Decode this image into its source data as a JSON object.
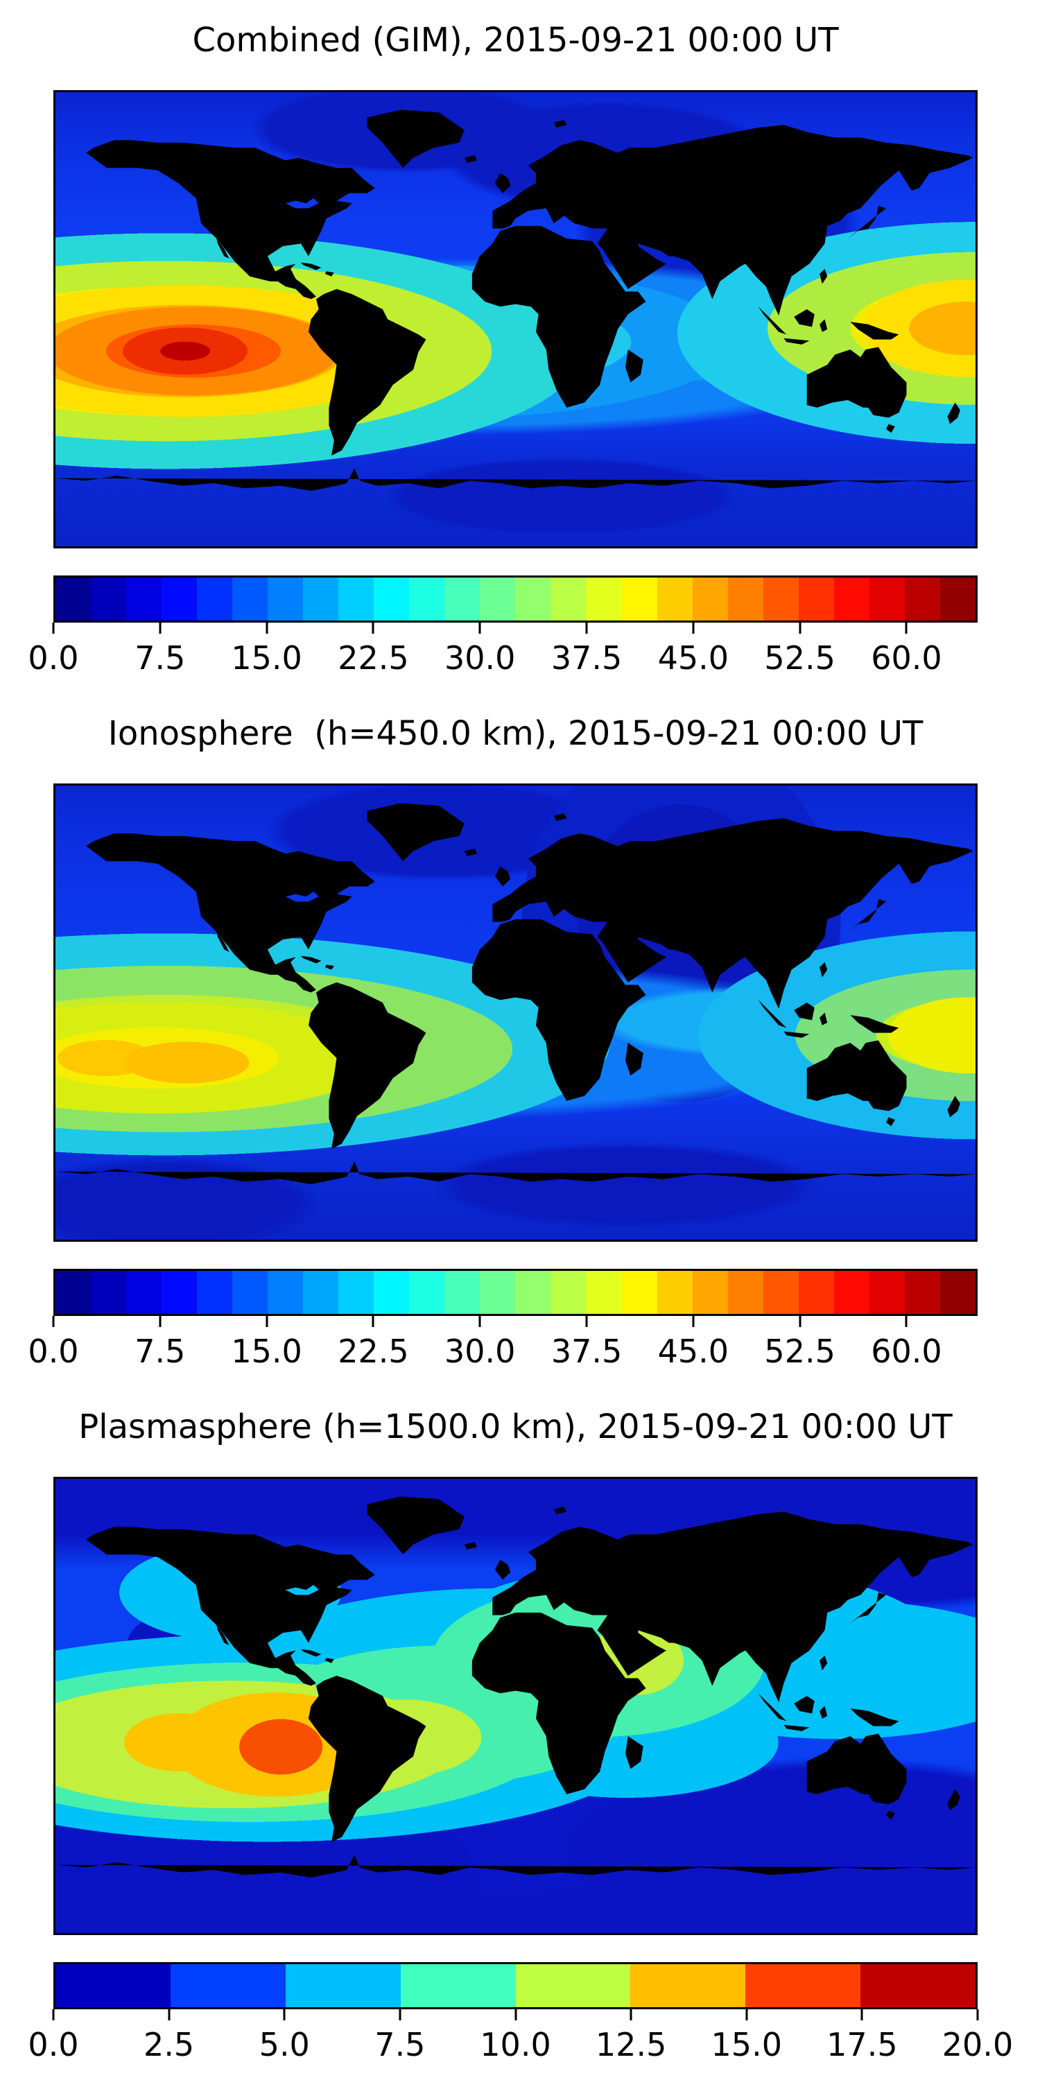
{
  "figure": {
    "background": "#ffffff",
    "coastline_color": "#000000",
    "frame_color": "#000000"
  },
  "panels": [
    {
      "id": "combined",
      "title": "Combined (GIM), 2015-09-21 00:00 UT",
      "colorbar": {
        "colormap": "jet",
        "min": 0,
        "max": 65,
        "segments": 26,
        "tick_values": [
          0,
          7.5,
          15,
          22.5,
          30,
          37.5,
          45,
          52.5,
          60
        ],
        "tick_labels": [
          "0.0",
          "7.5",
          "15.0",
          "22.5",
          "30.0",
          "37.5",
          "45.0",
          "52.5",
          "60.0"
        ]
      }
    },
    {
      "id": "ionosphere",
      "title": "Ionosphere  (h=450.0 km), 2015-09-21 00:00 UT",
      "colorbar": {
        "colormap": "jet",
        "min": 0,
        "max": 65,
        "segments": 26,
        "tick_values": [
          0,
          7.5,
          15,
          22.5,
          30,
          37.5,
          45,
          52.5,
          60
        ],
        "tick_labels": [
          "0.0",
          "7.5",
          "15.0",
          "22.5",
          "30.0",
          "37.5",
          "45.0",
          "52.5",
          "60.0"
        ]
      }
    },
    {
      "id": "plasmasphere",
      "title": "Plasmasphere (h=1500.0 km), 2015-09-21 00:00 UT",
      "colorbar": {
        "colormap": "jet",
        "min": 0,
        "max": 20,
        "segments": 8,
        "tick_values": [
          0,
          2.5,
          5,
          7.5,
          10,
          12.5,
          15,
          17.5,
          20
        ],
        "tick_labels": [
          "0.0",
          "2.5",
          "5.0",
          "7.5",
          "10.0",
          "12.5",
          "15.0",
          "17.5",
          "20.0"
        ]
      }
    }
  ],
  "chart_data": [
    {
      "type": "heatmap",
      "subtype": "filled_contour_world_map",
      "title": "Combined (GIM), 2015-09-21 00:00 UT",
      "projection": "equirectangular",
      "lon_range": [
        -180,
        180
      ],
      "lat_range": [
        -90,
        90
      ],
      "colormap": "jet",
      "contour_levels": {
        "min": 0,
        "max": 65,
        "step": 2.5
      },
      "colorbar_ticks": [
        0,
        7.5,
        15,
        22.5,
        30,
        37.5,
        45,
        52.5,
        60
      ],
      "legend_position": "horizontal colorbar below map",
      "approx_features": [
        {
          "feature": "primary maximum (equatorial anomaly, east Pacific)",
          "value_approx": 62,
          "lon_approx": -129,
          "lat_approx": -12
        },
        {
          "feature": "secondary maximum near dateline (west Pacific)",
          "value_approx": 47,
          "lon_approx": 178,
          "lat_approx": -4
        },
        {
          "feature": "equatorial enhancement band",
          "value_range": [
            20,
            45
          ],
          "lat_band": [
            -25,
            5
          ]
        },
        {
          "feature": "high-latitude background minimum",
          "value_range": [
            0,
            10
          ]
        }
      ]
    },
    {
      "type": "heatmap",
      "subtype": "filled_contour_world_map",
      "title": "Ionosphere  (h=450.0 km), 2015-09-21 00:00 UT",
      "projection": "equirectangular",
      "lon_range": [
        -180,
        180
      ],
      "lat_range": [
        -90,
        90
      ],
      "colormap": "jet",
      "contour_levels": {
        "min": 0,
        "max": 65,
        "step": 2.5
      },
      "colorbar_ticks": [
        0,
        7.5,
        15,
        22.5,
        30,
        37.5,
        45,
        52.5,
        60
      ],
      "legend_position": "horizontal colorbar below map",
      "approx_features": [
        {
          "feature": "primary maxima (central/east Pacific, two cores)",
          "value_approx": 42,
          "lon_approx": -160,
          "lat_approx": -19
        },
        {
          "feature": "second core",
          "value_approx": 42,
          "lon_approx": -128,
          "lat_approx": -21
        },
        {
          "feature": "west Pacific maximum near dateline",
          "value_approx": 37,
          "lon_approx": 179,
          "lat_approx": -9
        },
        {
          "feature": "deep minimum over Europe/Africa sector",
          "value_range": [
            0,
            7.5
          ]
        }
      ]
    },
    {
      "type": "heatmap",
      "subtype": "filled_contour_world_map",
      "title": "Plasmasphere (h=1500.0 km), 2015-09-21 00:00 UT",
      "projection": "equirectangular",
      "lon_range": [
        -180,
        180
      ],
      "lat_range": [
        -90,
        90
      ],
      "colormap": "jet",
      "contour_levels": {
        "min": 0,
        "max": 20,
        "step": 2.5
      },
      "colorbar_ticks": [
        0,
        2.5,
        5,
        7.5,
        10,
        12.5,
        15,
        17.5,
        20
      ],
      "legend_position": "horizontal colorbar below map",
      "approx_features": [
        {
          "feature": "maximum west of Peru",
          "value_approx": 18,
          "lon_approx": -92,
          "lat_approx": -16
        },
        {
          "feature": "secondary gold core",
          "value_approx": 14,
          "lon_approx": -131,
          "lat_approx": -15
        },
        {
          "feature": "diagonal plasmaspheric band across South America, Africa, SE Asia",
          "value_range": [
            5,
            10
          ]
        },
        {
          "feature": "high-latitude / southern-ocean minimum",
          "value_range": [
            0,
            2.5
          ]
        }
      ]
    }
  ]
}
